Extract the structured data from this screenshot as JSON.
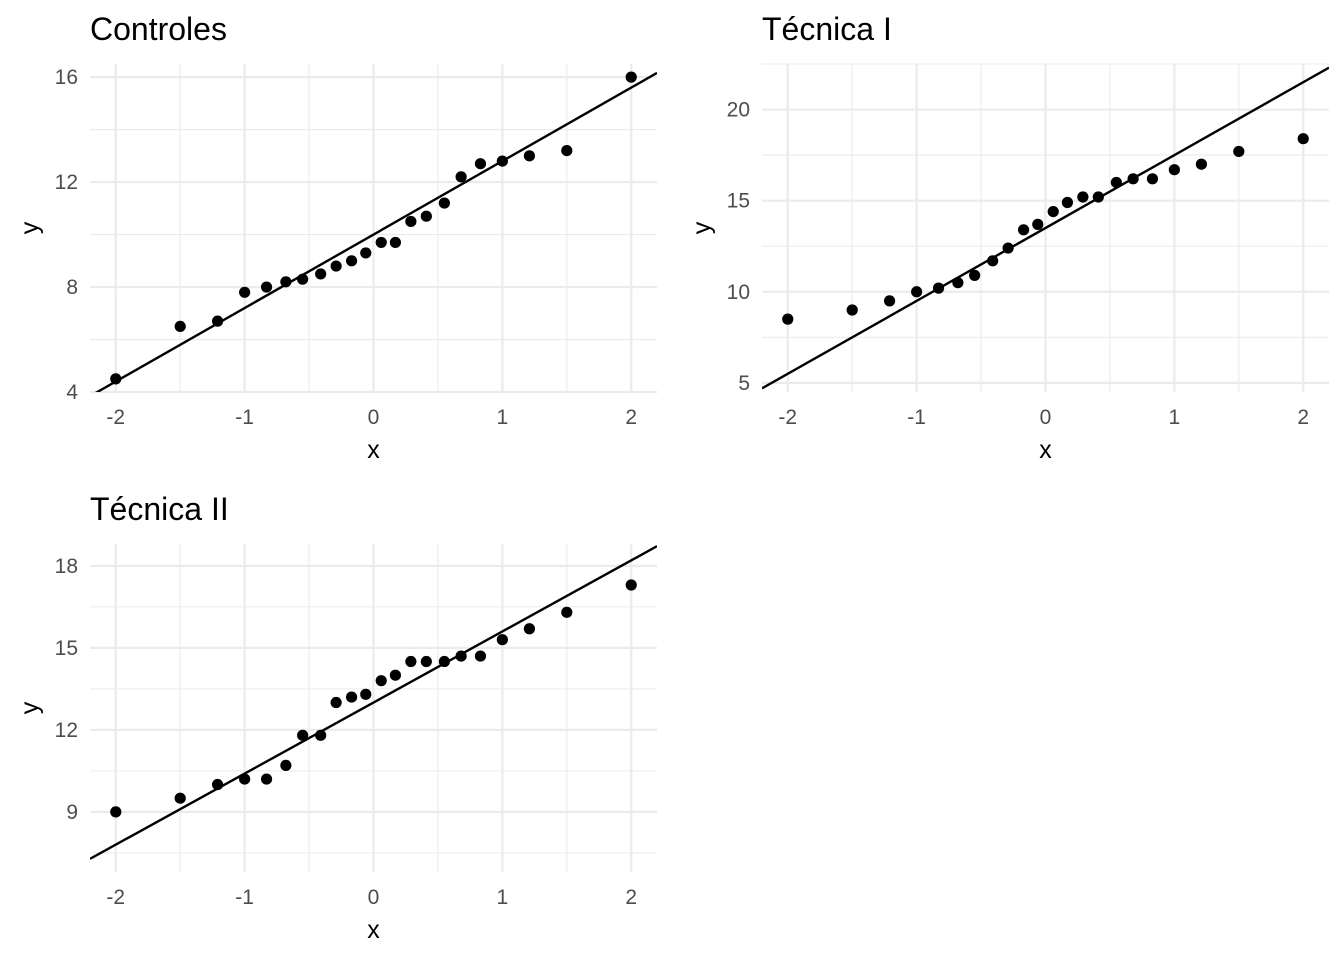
{
  "chart_data": [
    {
      "type": "scatter",
      "title": "Controles",
      "xlabel": "x",
      "ylabel": "y",
      "xlim": [
        -2.2,
        2.2
      ],
      "ylim": [
        4.0,
        16.5
      ],
      "x_ticks": [
        -2,
        -1,
        0,
        1,
        2
      ],
      "x_tick_labels": [
        "-2",
        "-1",
        "0",
        "1",
        "2"
      ],
      "y_ticks": [
        4,
        8,
        12,
        16
      ],
      "y_tick_labels": [
        "4",
        "8",
        "12",
        "16"
      ],
      "grid": true,
      "reference_line": {
        "intercept": 10.0,
        "slope": 2.8
      },
      "x": [
        -2.0,
        -1.5,
        -1.21,
        -1.0,
        -0.83,
        -0.68,
        -0.55,
        -0.41,
        -0.29,
        -0.17,
        -0.06,
        0.06,
        0.17,
        0.29,
        0.41,
        0.55,
        0.68,
        0.83,
        1.0,
        1.21,
        1.5,
        2.0
      ],
      "y": [
        4.5,
        6.5,
        6.7,
        7.8,
        8.0,
        8.2,
        8.3,
        8.5,
        8.8,
        9.0,
        9.3,
        9.7,
        9.7,
        10.5,
        10.7,
        11.2,
        12.2,
        12.7,
        12.8,
        13.0,
        13.2,
        16.0
      ]
    },
    {
      "type": "scatter",
      "title": "Técnica I",
      "xlabel": "x",
      "ylabel": "y",
      "xlim": [
        -2.2,
        2.2
      ],
      "ylim": [
        4.5,
        22.5
      ],
      "x_ticks": [
        -2,
        -1,
        0,
        1,
        2
      ],
      "x_tick_labels": [
        "-2",
        "-1",
        "0",
        "1",
        "2"
      ],
      "y_ticks": [
        5,
        10,
        15,
        20
      ],
      "y_tick_labels": [
        "5",
        "10",
        "15",
        "20"
      ],
      "grid": true,
      "reference_line": {
        "intercept": 13.5,
        "slope": 4.0
      },
      "x": [
        -2.0,
        -1.5,
        -1.21,
        -1.0,
        -0.83,
        -0.68,
        -0.55,
        -0.41,
        -0.29,
        -0.17,
        -0.06,
        0.06,
        0.17,
        0.29,
        0.41,
        0.55,
        0.68,
        0.83,
        1.0,
        1.21,
        1.5,
        2.0
      ],
      "y": [
        8.5,
        9.0,
        9.5,
        10.0,
        10.2,
        10.5,
        10.9,
        11.7,
        12.4,
        13.4,
        13.7,
        14.4,
        14.9,
        15.2,
        15.2,
        16.0,
        16.2,
        16.2,
        16.7,
        17.0,
        17.7,
        18.4
      ]
    },
    {
      "type": "scatter",
      "title": "Técnica II",
      "xlabel": "x",
      "ylabel": "y",
      "xlim": [
        -2.2,
        2.2
      ],
      "ylim": [
        6.8,
        18.8
      ],
      "x_ticks": [
        -2,
        -1,
        0,
        1,
        2
      ],
      "x_tick_labels": [
        "-2",
        "-1",
        "0",
        "1",
        "2"
      ],
      "y_ticks": [
        9,
        12,
        15,
        18
      ],
      "y_tick_labels": [
        "9",
        "12",
        "15",
        "18"
      ],
      "grid": true,
      "reference_line": {
        "intercept": 13.0,
        "slope": 2.6
      },
      "x": [
        -2.0,
        -1.5,
        -1.21,
        -1.0,
        -0.83,
        -0.68,
        -0.55,
        -0.41,
        -0.29,
        -0.17,
        -0.06,
        0.06,
        0.17,
        0.29,
        0.41,
        0.55,
        0.68,
        0.83,
        1.0,
        1.21,
        1.5,
        2.0
      ],
      "y": [
        9.0,
        9.5,
        10.0,
        10.2,
        10.2,
        10.7,
        11.8,
        11.8,
        13.0,
        13.2,
        13.3,
        13.8,
        14.0,
        14.5,
        14.5,
        14.5,
        14.7,
        14.7,
        15.3,
        15.7,
        16.3,
        17.3
      ]
    }
  ]
}
